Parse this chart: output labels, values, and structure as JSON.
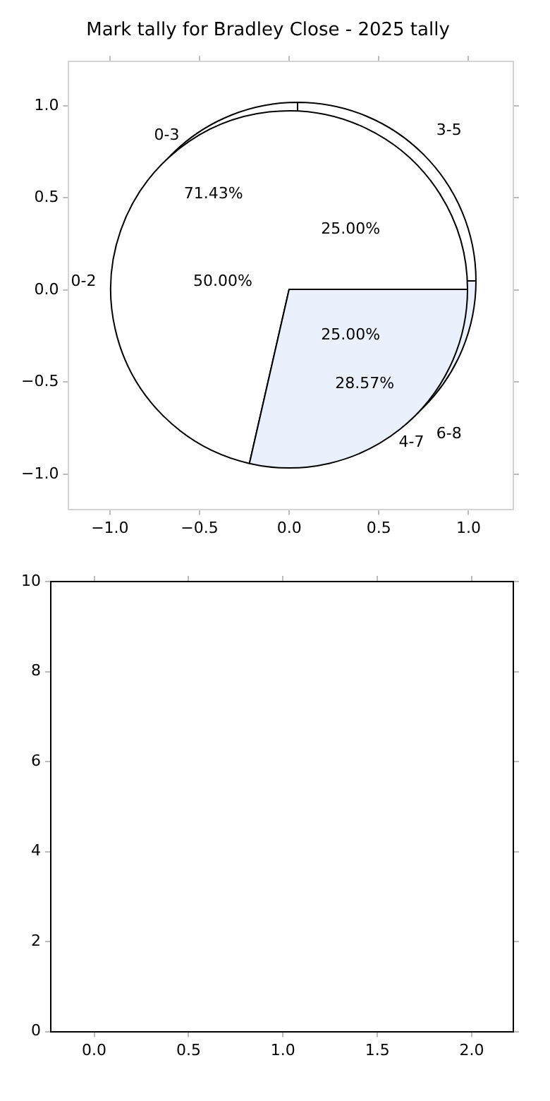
{
  "chart_data": [
    {
      "type": "scatter",
      "title": "Mark tally for Bradley Close - 2025 tally",
      "xlim": [
        -1.23,
        1.25
      ],
      "xticks": [
        {
          "value": -1,
          "label": "−1.0"
        },
        {
          "value": -0.5,
          "label": "−0.5"
        },
        {
          "value": 0,
          "label": "0.0"
        },
        {
          "value": 0.5,
          "label": "0.5"
        },
        {
          "value": 1,
          "label": "1.0"
        }
      ],
      "yticks": [
        {
          "value": -1,
          "label": "−1.0"
        },
        {
          "value": -0.5,
          "label": "−0.5"
        },
        {
          "value": 0,
          "label": "0.0"
        },
        {
          "value": 0.5,
          "label": "0.5"
        },
        {
          "value": 1,
          "label": "1.0"
        }
      ],
      "ylim": [
        -1.19,
        1.24
      ]
    },
    {
      "type": "pie",
      "categories": [
        "0-3",
        "4-7"
      ],
      "values": [
        71.43,
        28.57
      ],
      "colors": [
        "#ffffff",
        "#eaf0fc"
      ],
      "value_labels": [
        "71.43%",
        "28.57%"
      ]
    },
    {
      "type": "pie",
      "categories": [
        "0-2",
        "3-5",
        "6-8"
      ],
      "values": [
        50,
        25,
        25
      ],
      "colors": [
        "#ffffff",
        "#ffffff",
        "#eaf0fc"
      ],
      "value_labels": [
        "50.00%",
        "25.00%",
        "25.00%"
      ]
    },
    {
      "type": "scatter",
      "xlim": [
        -0.23,
        2.22
      ],
      "xticks": [
        {
          "value": 0,
          "label": "0.0"
        },
        {
          "value": 0.5,
          "label": "0.5"
        },
        {
          "value": 1,
          "label": "1.0"
        },
        {
          "value": 1.5,
          "label": "1.5"
        },
        {
          "value": 2,
          "label": "2.0"
        }
      ],
      "ylim": [
        0,
        10
      ],
      "yticks": [
        0,
        2,
        4,
        6,
        8,
        10
      ]
    }
  ]
}
